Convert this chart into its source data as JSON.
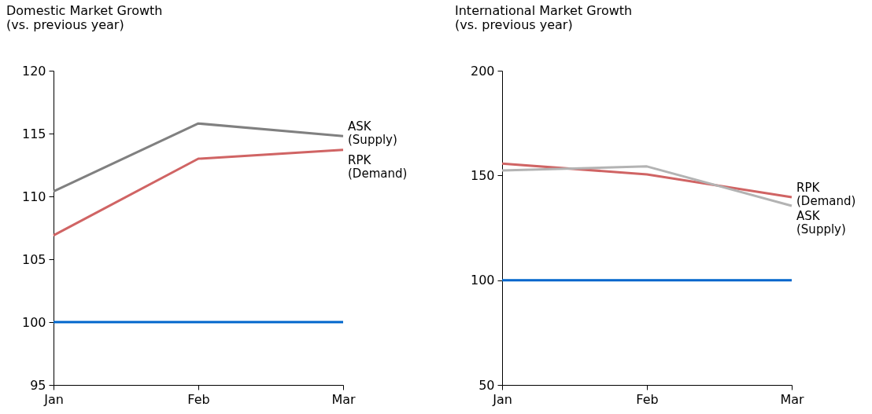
{
  "chart_data": [
    {
      "type": "line",
      "title": "Domestic Market Growth",
      "subtitle": "(vs. previous year)",
      "categories": [
        "Jan",
        "Feb",
        "Mar"
      ],
      "ylim": [
        95,
        120
      ],
      "yticks": [
        95,
        100,
        105,
        110,
        115,
        120
      ],
      "series": [
        {
          "name": "ASK (Supply)",
          "color": "#808080",
          "values": [
            110.4,
            115.8,
            114.8
          ]
        },
        {
          "name": "RPK (Demand)",
          "color": "#d06464",
          "values": [
            106.9,
            113.0,
            113.7
          ]
        }
      ],
      "ref_lines": [
        {
          "axis": "y",
          "value": 100,
          "color": "#0066cc"
        }
      ]
    },
    {
      "type": "line",
      "title": "International Market Growth",
      "subtitle": "(vs. previous year)",
      "categories": [
        "Jan",
        "Feb",
        "Mar"
      ],
      "ylim": [
        50,
        200
      ],
      "yticks": [
        50,
        100,
        150,
        200
      ],
      "series": [
        {
          "name": "RPK (Demand)",
          "color": "#d06464",
          "values": [
            155.7,
            150.5,
            139.6
          ]
        },
        {
          "name": "ASK (Supply)",
          "color": "#b3b3b3",
          "values": [
            152.4,
            154.3,
            135.5
          ]
        }
      ],
      "ref_lines": [
        {
          "axis": "y",
          "value": 100,
          "color": "#0066cc"
        }
      ]
    }
  ]
}
